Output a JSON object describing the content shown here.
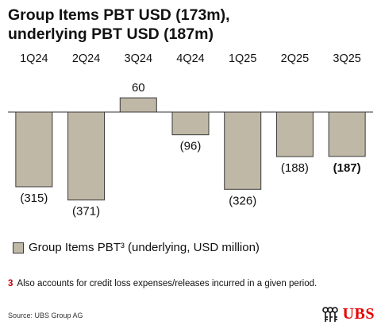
{
  "title_line1": "Group Items PBT USD (173m),",
  "title_line2": "underlying PBT USD (187m)",
  "chart_data": {
    "type": "bar",
    "categories": [
      "1Q24",
      "2Q24",
      "3Q24",
      "4Q24",
      "1Q25",
      "2Q25",
      "3Q25"
    ],
    "series": [
      {
        "name": "Group Items PBT³ (underlying, USD million)",
        "values": [
          -315,
          -371,
          60,
          -96,
          -326,
          -188,
          -187
        ]
      }
    ],
    "value_labels": [
      "(315)",
      "(371)",
      "60",
      "(96)",
      "(326)",
      "(188)",
      "(187)"
    ],
    "bold_labels": [
      false,
      false,
      false,
      false,
      false,
      false,
      true
    ],
    "bar_color": "#bfb8a6",
    "bar_border_color": "#3a3a3a"
  },
  "legend_label": "Group Items PBT³ (underlying, USD million)",
  "footnote_number": "3",
  "footnote_text": "Also accounts for credit loss expenses/releases incurred in a given period.",
  "source": "Source: UBS Group AG",
  "logo_text": "UBS",
  "logo_icon": "ubs-keys-icon",
  "accent_color": "#e60000"
}
